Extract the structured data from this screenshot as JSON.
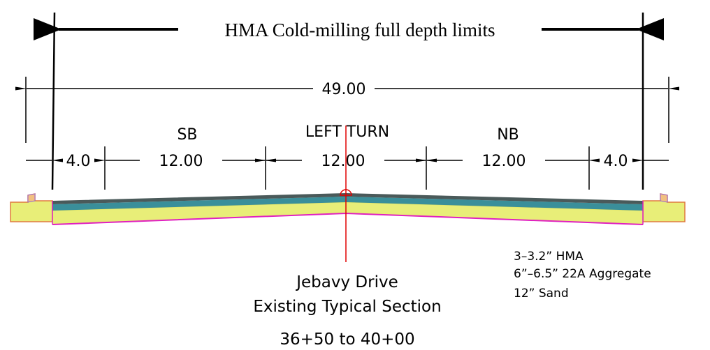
{
  "header": {
    "title": "HMA Cold-milling full depth limits"
  },
  "dimensions": {
    "overall": "49.00",
    "lanes": [
      {
        "name": "SB"
      },
      {
        "name": "LEFT TURN"
      },
      {
        "name": "NB"
      }
    ],
    "segments": [
      "4.0",
      "12.00",
      "12.00",
      "12.00",
      "4.0"
    ]
  },
  "caption": {
    "name": "Jebavy Drive",
    "subtitle": "Existing Typical Section",
    "station": "36+50 to 40+00"
  },
  "notes": [
    "3–3.2” HMA",
    "6”–6.5” 22A Aggregate",
    "12” Sand"
  ]
}
